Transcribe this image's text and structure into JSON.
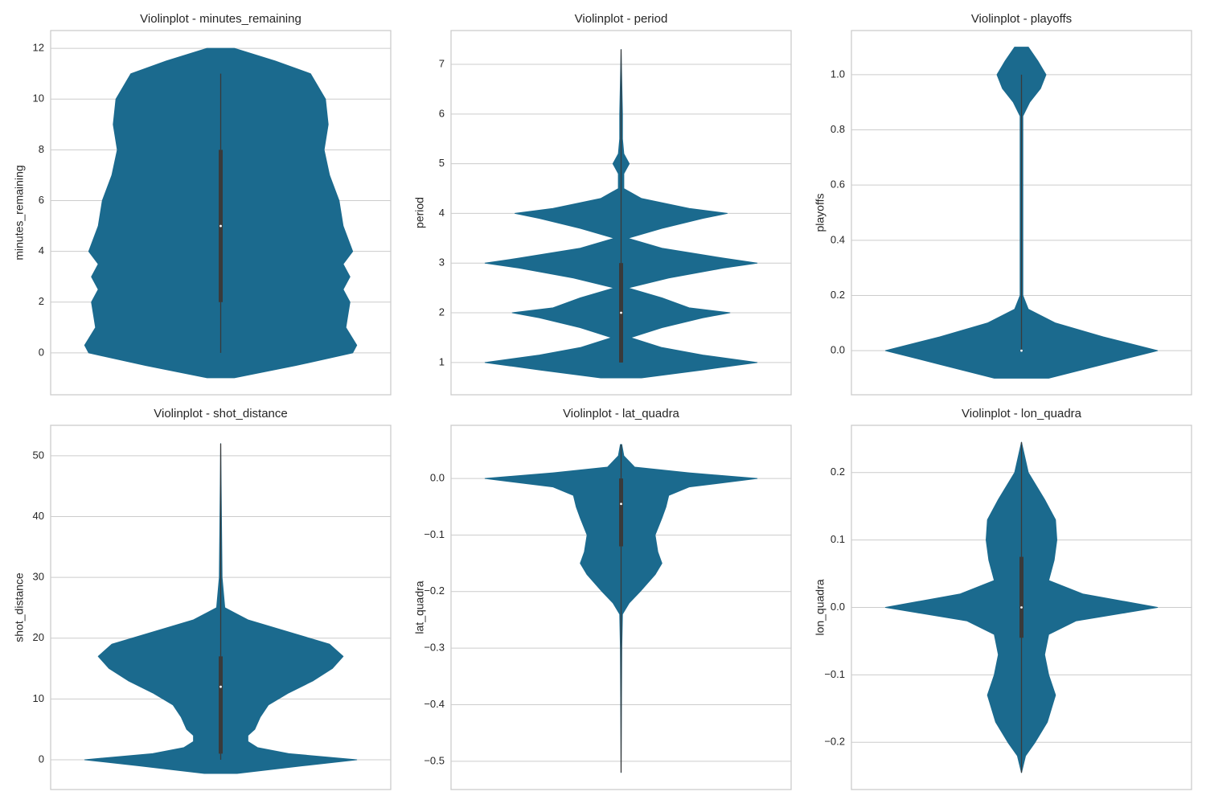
{
  "chart_data": [
    {
      "type": "violin",
      "title": "Violinplot - minutes_remaining",
      "ylabel": "minutes_remaining",
      "color": "#1b6a8e",
      "grid": true,
      "ylim": [
        -1.65,
        12.7
      ],
      "yticks": [
        0,
        2,
        4,
        6,
        8,
        10,
        12
      ],
      "density": {
        "y": [
          -0.98,
          -0.5,
          0,
          0.3,
          1,
          2,
          2.5,
          3,
          3.5,
          4,
          5,
          6,
          7,
          8,
          9,
          10,
          11,
          11.5,
          12
        ],
        "width": [
          0.1,
          0.55,
          0.97,
          1.0,
          0.92,
          0.95,
          0.9,
          0.95,
          0.9,
          0.97,
          0.9,
          0.87,
          0.8,
          0.76,
          0.79,
          0.77,
          0.66,
          0.4,
          0.1
        ]
      },
      "quartiles": [
        2,
        5,
        8
      ],
      "whiskers": [
        0,
        11
      ]
    },
    {
      "type": "violin",
      "title": "Violinplot - period",
      "ylabel": "period",
      "color": "#1b6a8e",
      "grid": true,
      "ylim": [
        0.35,
        7.68
      ],
      "yticks": [
        1,
        2,
        3,
        4,
        5,
        6,
        7
      ],
      "density": {
        "y": [
          0.69,
          0.85,
          1.0,
          1.15,
          1.3,
          1.5,
          1.7,
          1.9,
          2.0,
          2.1,
          2.3,
          2.5,
          2.7,
          2.9,
          3.0,
          3.1,
          3.3,
          3.5,
          3.7,
          3.9,
          4.0,
          4.1,
          4.3,
          4.5,
          4.8,
          5.0,
          5.2,
          5.5,
          6.0,
          7.3
        ],
        "width": [
          0.15,
          0.6,
          1.0,
          0.6,
          0.3,
          0.07,
          0.3,
          0.6,
          0.8,
          0.5,
          0.3,
          0.05,
          0.35,
          0.75,
          1.0,
          0.75,
          0.3,
          0.05,
          0.3,
          0.6,
          0.78,
          0.5,
          0.15,
          0.02,
          0.02,
          0.06,
          0.02,
          0.01,
          0.01,
          0.0
        ]
      },
      "quartiles": [
        1,
        2,
        3
      ],
      "whiskers": [
        1,
        7.3
      ]
    },
    {
      "type": "violin",
      "title": "Violinplot - playoffs",
      "ylabel": "playoffs",
      "color": "#1b6a8e",
      "grid": true,
      "ylim": [
        -0.16,
        1.16
      ],
      "yticks": [
        {
          "value": 0,
          "label": "0.0"
        },
        0.2,
        0.4,
        0.6,
        0.8,
        {
          "value": 1,
          "label": "1.0"
        }
      ],
      "density": {
        "y": [
          -0.1,
          -0.05,
          0.0,
          0.05,
          0.1,
          0.15,
          0.2,
          0.85,
          0.9,
          0.95,
          1.0,
          1.05,
          1.1
        ],
        "width": [
          0.2,
          0.6,
          1.0,
          0.6,
          0.25,
          0.05,
          0.01,
          0.01,
          0.06,
          0.14,
          0.18,
          0.12,
          0.05
        ]
      },
      "quartiles": [
        0,
        0,
        0
      ],
      "whiskers": [
        0,
        1
      ]
    },
    {
      "type": "violin",
      "title": "Violinplot - shot_distance",
      "ylabel": "shot_distance",
      "color": "#1b6a8e",
      "grid": true,
      "ylim": [
        -4.9,
        55
      ],
      "yticks": [
        0,
        10,
        20,
        30,
        40,
        50
      ],
      "density": {
        "y": [
          -2.25,
          -1,
          0,
          1,
          2,
          3,
          4,
          5,
          7,
          9,
          11,
          13,
          15,
          17,
          19,
          21,
          23,
          25,
          30,
          52
        ],
        "width": [
          0.12,
          0.6,
          1.0,
          0.5,
          0.27,
          0.2,
          0.2,
          0.25,
          0.29,
          0.35,
          0.5,
          0.68,
          0.82,
          0.9,
          0.8,
          0.5,
          0.2,
          0.03,
          0.01,
          0.0
        ]
      },
      "quartiles": [
        1,
        12,
        17
      ],
      "whiskers": [
        0,
        52
      ]
    },
    {
      "type": "violin",
      "title": "Violinplot - lat_quadra",
      "ylabel": "lat_quadra",
      "color": "#1b6a8e",
      "grid": true,
      "ylim": [
        -0.55,
        0.094
      ],
      "yticks": [
        {
          "value": -0.5,
          "label": "−0.5"
        },
        {
          "value": -0.4,
          "label": "−0.4"
        },
        {
          "value": -0.3,
          "label": "−0.3"
        },
        {
          "value": -0.2,
          "label": "−0.2"
        },
        {
          "value": -0.1,
          "label": "−0.1"
        },
        {
          "value": 0,
          "label": "0.0"
        }
      ],
      "density": {
        "y": [
          -0.52,
          -0.3,
          -0.24,
          -0.22,
          -0.2,
          -0.17,
          -0.15,
          -0.13,
          -0.1,
          -0.07,
          -0.05,
          -0.03,
          -0.015,
          0.0,
          0.01,
          0.02,
          0.04,
          0.06
        ],
        "width": [
          0.0,
          0.005,
          0.01,
          0.06,
          0.14,
          0.25,
          0.3,
          0.27,
          0.25,
          0.3,
          0.33,
          0.35,
          0.5,
          1.0,
          0.5,
          0.1,
          0.02,
          0.005
        ]
      },
      "quartiles": [
        -0.12,
        -0.045,
        0.0
      ],
      "whiskers": [
        -0.52,
        0.06
      ]
    },
    {
      "type": "violin",
      "title": "Violinplot - lon_quadra",
      "ylabel": "lon_quadra",
      "color": "#1b6a8e",
      "grid": true,
      "ylim": [
        -0.27,
        0.27
      ],
      "yticks": [
        {
          "value": -0.2,
          "label": "−0.2"
        },
        {
          "value": -0.1,
          "label": "−0.1"
        },
        {
          "value": 0,
          "label": "0.0"
        },
        0.1,
        0.2
      ],
      "density": {
        "y": [
          -0.245,
          -0.22,
          -0.2,
          -0.17,
          -0.13,
          -0.1,
          -0.07,
          -0.04,
          -0.02,
          0,
          0.02,
          0.04,
          0.07,
          0.1,
          0.13,
          0.16,
          0.2,
          0.245
        ],
        "width": [
          0.0,
          0.03,
          0.1,
          0.19,
          0.25,
          0.2,
          0.17,
          0.2,
          0.4,
          1.0,
          0.45,
          0.2,
          0.24,
          0.26,
          0.25,
          0.17,
          0.05,
          0.0
        ]
      },
      "quartiles": [
        -0.045,
        0,
        0.075
      ],
      "whiskers": [
        -0.245,
        0.245
      ]
    }
  ]
}
